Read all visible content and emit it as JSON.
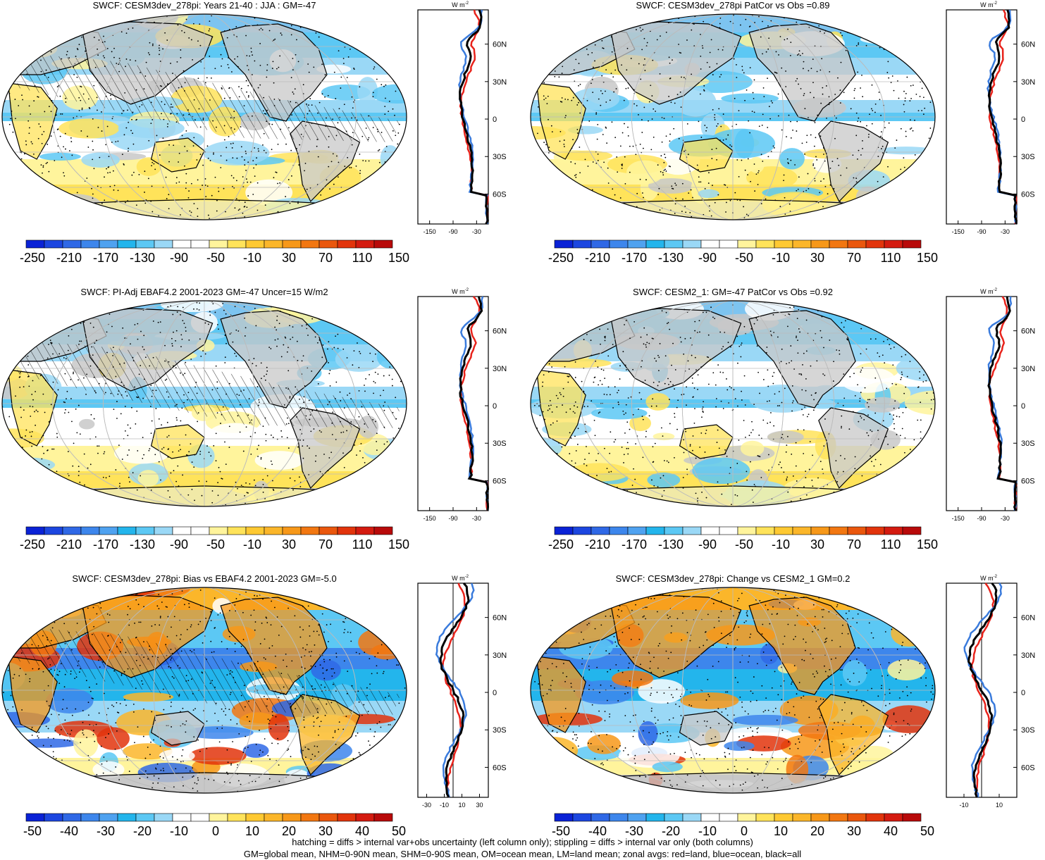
{
  "colors": {
    "ocean_blue": "#3a7bdc",
    "land_red": "#e8231b",
    "all_black": "#000000",
    "land_gray": "#c8c8c8",
    "palette": [
      "#0a22d6",
      "#1c46e0",
      "#2f68e6",
      "#3d86ec",
      "#4fa2f0",
      "#23b5ec",
      "#5cc8f4",
      "#9ad8f6",
      "#ffffff",
      "#ffffff",
      "#fff49c",
      "#ffe35a",
      "#fec932",
      "#fbb62a",
      "#f79819",
      "#f27711",
      "#ea570d",
      "#e2340c",
      "#d41b10",
      "#b80a0a"
    ]
  },
  "panels": [
    {
      "id": "p1",
      "title": "SWCF: CESM3dev_278pi: Years 21-40 : JJA : GM=-47",
      "type": "abs",
      "cbar_labels": [
        "-250",
        "-210",
        "-170",
        "-130",
        "-90",
        "-50",
        "-10",
        "30",
        "70",
        "110",
        "150"
      ],
      "zonal_units": "W m",
      "zonal_units_sup": "-2",
      "zonal_xticks": [
        "-150",
        "-90",
        "-30"
      ],
      "zonal_yticks": [
        "60N",
        "30N",
        "0",
        "30S",
        "60S"
      ]
    },
    {
      "id": "p2",
      "title": "SWCF: CESM3dev_278pi PatCor vs Obs =0.89",
      "type": "abs",
      "cbar_labels": [
        "-250",
        "-210",
        "-170",
        "-130",
        "-90",
        "-50",
        "-10",
        "30",
        "70",
        "110",
        "150"
      ],
      "zonal_units": "W m",
      "zonal_units_sup": "-2",
      "zonal_xticks": [
        "-150",
        "-90",
        "-30"
      ],
      "zonal_yticks": [
        "60N",
        "30N",
        "0",
        "30S",
        "60S"
      ]
    },
    {
      "id": "p3",
      "title": "SWCF: PI-Adj EBAF4.2 2001-2023 GM=-47 Uncer=15 W/m2",
      "type": "abs",
      "cbar_labels": [
        "-250",
        "-210",
        "-170",
        "-130",
        "-90",
        "-50",
        "-10",
        "30",
        "70",
        "110",
        "150"
      ],
      "zonal_units": "W m",
      "zonal_units_sup": "-2",
      "zonal_xticks": [
        "-150",
        "-90",
        "-30"
      ],
      "zonal_yticks": [
        "60N",
        "30N",
        "0",
        "30S",
        "60S"
      ]
    },
    {
      "id": "p4",
      "title": "SWCF: CESM2_1: GM=-47 PatCor vs Obs =0.92",
      "type": "abs",
      "cbar_labels": [
        "-250",
        "-210",
        "-170",
        "-130",
        "-90",
        "-50",
        "-10",
        "30",
        "70",
        "110",
        "150"
      ],
      "zonal_units": "W m",
      "zonal_units_sup": "-2",
      "zonal_xticks": [
        "-150",
        "-90",
        "-30"
      ],
      "zonal_yticks": [
        "60N",
        "30N",
        "0",
        "30S",
        "60S"
      ]
    },
    {
      "id": "p5",
      "title": "SWCF: CESM3dev_278pi: Bias vs EBAF4.2 2001-2023 GM=-5.0",
      "type": "diff",
      "cbar_labels": [
        "-50",
        "-40",
        "-30",
        "-20",
        "-10",
        "0",
        "10",
        "20",
        "30",
        "40",
        "50"
      ],
      "zonal_units": "W m",
      "zonal_units_sup": "-2",
      "zonal_xticks": [
        "-30",
        "-10",
        "10",
        "30"
      ],
      "zonal_yticks": [
        "60N",
        "30N",
        "0",
        "30S",
        "60S"
      ]
    },
    {
      "id": "p6",
      "title": "SWCF: CESM3dev_278pi: Change vs CESM2_1 GM=0.2",
      "type": "diff",
      "cbar_labels": [
        "-50",
        "-40",
        "-30",
        "-20",
        "-10",
        "0",
        "10",
        "20",
        "30",
        "40",
        "50"
      ],
      "zonal_units": "W m",
      "zonal_units_sup": "-2",
      "zonal_xticks": [
        "-10",
        "10"
      ],
      "zonal_yticks": [
        "60N",
        "30N",
        "0",
        "30S",
        "60S"
      ]
    }
  ],
  "footer": {
    "line1": "hatching = diffs > internal var+obs uncertainty (left column only); stippling = diffs > internal var only (both columns)",
    "line2": "GM=global mean, NHM=0-90N mean, SHM=0-90S mean, OM=ocean mean, LM=land mean; zonal avgs: red=land, blue=ocean, black=all"
  }
}
